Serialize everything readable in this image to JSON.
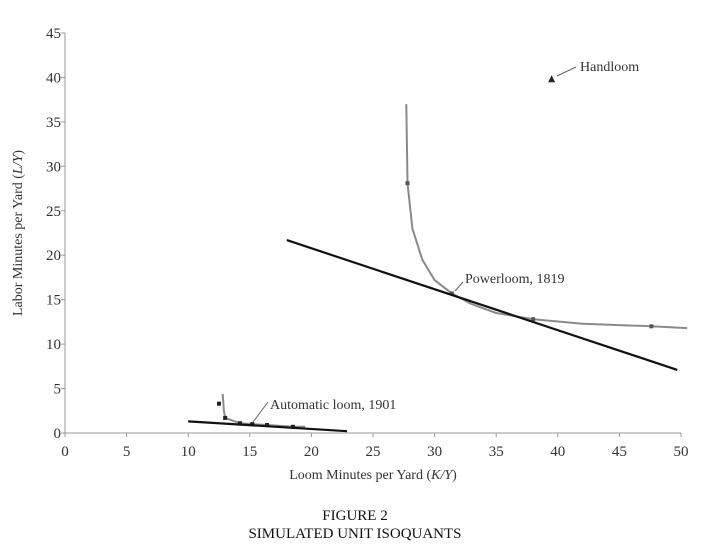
{
  "chart_data": {
    "type": "line",
    "title": "SIMULATED UNIT ISOQUANTS",
    "figure_label": "FIGURE 2",
    "xlabel_prefix": "Loom Minutes per Yard (",
    "xlabel_var": "K/Y",
    "xlabel_suffix": ")",
    "ylabel_prefix": "Labor Minutes per Yard (",
    "ylabel_var": "L/Y",
    "ylabel_suffix": ")",
    "xlim": [
      0,
      50
    ],
    "ylim": [
      0,
      45
    ],
    "xticks": [
      "0",
      "5",
      "10",
      "15",
      "20",
      "25",
      "30",
      "35",
      "40",
      "45",
      "50"
    ],
    "yticks": [
      "0",
      "5",
      "10",
      "15",
      "20",
      "25",
      "30",
      "35",
      "40",
      "45"
    ],
    "grid": false,
    "series": [
      {
        "name": "Powerloom isoquant",
        "kind": "curve",
        "color": "#8a8a8a",
        "x": [
          27.7,
          27.8,
          28.2,
          29,
          30,
          31.4,
          33,
          35,
          38,
          42,
          47.6,
          50.5
        ],
        "y": [
          37,
          28.1,
          23,
          19.5,
          17.2,
          15.7,
          14.5,
          13.5,
          12.8,
          12.3,
          12.0,
          11.8
        ]
      },
      {
        "name": "Powerloom points",
        "kind": "points",
        "color": "#555555",
        "x": [
          27.8,
          31.4,
          38.0,
          47.6
        ],
        "y": [
          28.1,
          15.7,
          12.8,
          12.0
        ]
      },
      {
        "name": "Powerloom isocost",
        "kind": "line",
        "color": "#111111",
        "x": [
          18.0,
          49.7
        ],
        "y": [
          21.7,
          7.1
        ]
      },
      {
        "name": "Automatic loom isoquant",
        "kind": "curve",
        "color": "#8a8a8a",
        "x": [
          12.8,
          12.9,
          13.0,
          14.2,
          15.2,
          16.4,
          18.5,
          19.5
        ],
        "y": [
          4.4,
          2.5,
          1.7,
          1.1,
          1.0,
          0.9,
          0.7,
          0.7
        ]
      },
      {
        "name": "Automatic loom points",
        "kind": "points",
        "color": "#222222",
        "x": [
          12.5,
          13.0,
          14.2,
          15.2,
          16.4,
          18.5
        ],
        "y": [
          3.3,
          1.7,
          1.1,
          1.0,
          0.9,
          0.7
        ]
      },
      {
        "name": "Automatic loom isocost",
        "kind": "line",
        "color": "#111111",
        "x": [
          10.0,
          22.9
        ],
        "y": [
          1.3,
          0.2
        ]
      },
      {
        "name": "Handloom",
        "kind": "triangle",
        "color": "#222222",
        "x": [
          39.5
        ],
        "y": [
          39.8
        ]
      }
    ],
    "annotations": [
      {
        "text": "Handloom",
        "x": 39.5,
        "y": 39.8
      },
      {
        "text": "Powerloom, 1819",
        "x": 31.4,
        "y": 15.7
      },
      {
        "text": "Automatic loom, 1901",
        "x": 15.2,
        "y": 1.0
      }
    ]
  }
}
